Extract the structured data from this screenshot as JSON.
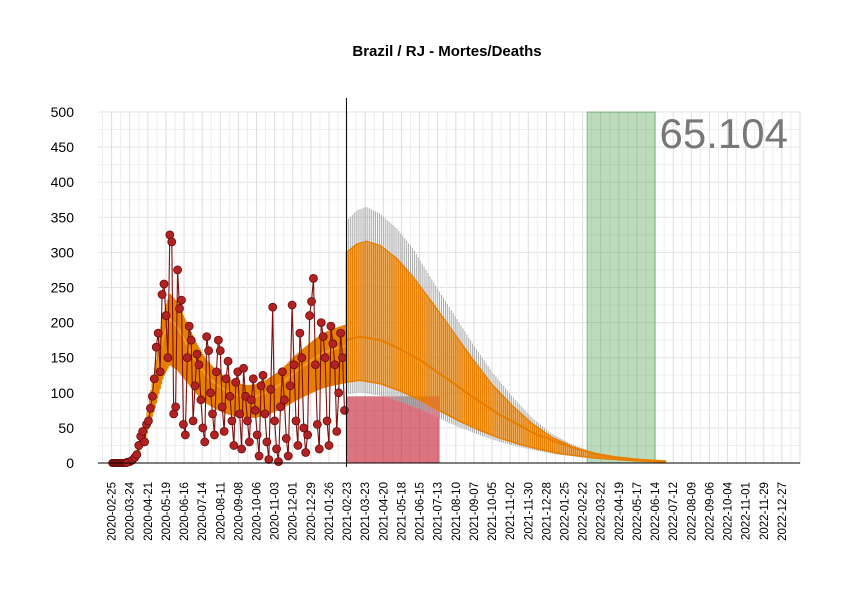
{
  "chart_data": {
    "type": "line",
    "title": "Brazil / RJ - Mortes/Deaths",
    "total_label": "65.104",
    "ylim": [
      0,
      500
    ],
    "y_ticks": [
      0,
      50,
      100,
      150,
      200,
      250,
      300,
      350,
      400,
      450,
      500
    ],
    "x_range": [
      "2020-02-04",
      "2023-01-24"
    ],
    "x_ticks": [
      "2020-02-25",
      "2020-03-24",
      "2020-04-21",
      "2020-05-19",
      "2020-06-16",
      "2020-07-14",
      "2020-08-11",
      "2020-09-08",
      "2020-10-06",
      "2020-11-03",
      "2020-12-01",
      "2020-12-29",
      "2021-01-26",
      "2021-02-23",
      "2021-03-23",
      "2021-04-20",
      "2021-05-18",
      "2021-06-15",
      "2021-07-13",
      "2021-08-10",
      "2021-09-07",
      "2021-10-05",
      "2021-11-02",
      "2021-11-30",
      "2021-12-28",
      "2022-01-25",
      "2022-02-22",
      "2022-03-22",
      "2022-04-19",
      "2022-05-17",
      "2022-06-14",
      "2022-07-12",
      "2022-08-09",
      "2022-09-06",
      "2022-10-04",
      "2022-11-01",
      "2022-11-29",
      "2022-12-27"
    ],
    "forecast_start": "2021-02-22",
    "green_band": [
      "2022-03-01",
      "2022-06-14"
    ],
    "red_band": {
      "start": "2021-02-22",
      "end": "2021-07-16",
      "level": 95
    },
    "colors": {
      "observed": "#b22222",
      "observed_line": "#7a1010",
      "fit": "#e67e00",
      "band_red": "#c8283c",
      "band_green": "#2e8b2e",
      "forecast_gray": "#aaaaaa",
      "total": "#777777"
    },
    "series": [
      {
        "kind": "observed_daily",
        "points": [
          [
            "2020-03-20",
            1
          ],
          [
            "2020-03-24",
            2
          ],
          [
            "2020-03-28",
            4
          ],
          [
            "2020-04-01",
            8
          ],
          [
            "2020-04-04",
            12
          ],
          [
            "2020-04-07",
            25
          ],
          [
            "2020-04-10",
            38
          ],
          [
            "2020-04-13",
            45
          ],
          [
            "2020-04-16",
            30
          ],
          [
            "2020-04-19",
            55
          ],
          [
            "2020-04-22",
            60
          ],
          [
            "2020-04-25",
            78
          ],
          [
            "2020-04-28",
            95
          ],
          [
            "2020-05-01",
            120
          ],
          [
            "2020-05-04",
            165
          ],
          [
            "2020-05-07",
            185
          ],
          [
            "2020-05-10",
            130
          ],
          [
            "2020-05-13",
            240
          ],
          [
            "2020-05-16",
            255
          ],
          [
            "2020-05-19",
            210
          ],
          [
            "2020-05-22",
            150
          ],
          [
            "2020-05-25",
            325
          ],
          [
            "2020-05-28",
            315
          ],
          [
            "2020-05-31",
            70
          ],
          [
            "2020-06-03",
            80
          ],
          [
            "2020-06-06",
            275
          ],
          [
            "2020-06-09",
            220
          ],
          [
            "2020-06-12",
            232
          ],
          [
            "2020-06-15",
            55
          ],
          [
            "2020-06-18",
            40
          ],
          [
            "2020-06-21",
            150
          ],
          [
            "2020-06-24",
            195
          ],
          [
            "2020-06-27",
            175
          ],
          [
            "2020-06-30",
            60
          ],
          [
            "2020-07-03",
            110
          ],
          [
            "2020-07-06",
            155
          ],
          [
            "2020-07-09",
            140
          ],
          [
            "2020-07-12",
            90
          ],
          [
            "2020-07-15",
            50
          ],
          [
            "2020-07-18",
            30
          ],
          [
            "2020-07-21",
            180
          ],
          [
            "2020-07-24",
            160
          ],
          [
            "2020-07-27",
            100
          ],
          [
            "2020-07-30",
            70
          ],
          [
            "2020-08-02",
            40
          ],
          [
            "2020-08-05",
            130
          ],
          [
            "2020-08-08",
            175
          ],
          [
            "2020-08-11",
            160
          ],
          [
            "2020-08-14",
            80
          ],
          [
            "2020-08-17",
            45
          ],
          [
            "2020-08-20",
            120
          ],
          [
            "2020-08-23",
            145
          ],
          [
            "2020-08-26",
            95
          ],
          [
            "2020-08-29",
            60
          ],
          [
            "2020-09-01",
            25
          ],
          [
            "2020-09-04",
            115
          ],
          [
            "2020-09-07",
            130
          ],
          [
            "2020-09-10",
            70
          ],
          [
            "2020-09-13",
            20
          ],
          [
            "2020-09-16",
            135
          ],
          [
            "2020-09-19",
            95
          ],
          [
            "2020-09-22",
            60
          ],
          [
            "2020-09-25",
            30
          ],
          [
            "2020-09-28",
            90
          ],
          [
            "2020-10-01",
            120
          ],
          [
            "2020-10-04",
            75
          ],
          [
            "2020-10-07",
            40
          ],
          [
            "2020-10-10",
            10
          ],
          [
            "2020-10-13",
            110
          ],
          [
            "2020-10-16",
            125
          ],
          [
            "2020-10-19",
            70
          ],
          [
            "2020-10-22",
            30
          ],
          [
            "2020-10-25",
            5
          ],
          [
            "2020-10-28",
            105
          ],
          [
            "2020-10-31",
            222
          ],
          [
            "2020-11-03",
            60
          ],
          [
            "2020-11-06",
            20
          ],
          [
            "2020-11-09",
            2
          ],
          [
            "2020-11-12",
            80
          ],
          [
            "2020-11-15",
            130
          ],
          [
            "2020-11-18",
            90
          ],
          [
            "2020-11-21",
            35
          ],
          [
            "2020-11-24",
            10
          ],
          [
            "2020-11-27",
            110
          ],
          [
            "2020-11-30",
            225
          ],
          [
            "2020-12-03",
            140
          ],
          [
            "2020-12-06",
            60
          ],
          [
            "2020-12-09",
            25
          ],
          [
            "2020-12-12",
            185
          ],
          [
            "2020-12-15",
            150
          ],
          [
            "2020-12-18",
            50
          ],
          [
            "2020-12-21",
            15
          ],
          [
            "2020-12-24",
            40
          ],
          [
            "2020-12-27",
            210
          ],
          [
            "2020-12-30",
            230
          ],
          [
            "2021-01-02",
            263
          ],
          [
            "2021-01-05",
            140
          ],
          [
            "2021-01-08",
            55
          ],
          [
            "2021-01-11",
            20
          ],
          [
            "2021-01-14",
            200
          ],
          [
            "2021-01-17",
            180
          ],
          [
            "2021-01-20",
            150
          ],
          [
            "2021-01-23",
            60
          ],
          [
            "2021-01-26",
            25
          ],
          [
            "2021-01-29",
            195
          ],
          [
            "2021-02-01",
            170
          ],
          [
            "2021-02-04",
            140
          ],
          [
            "2021-02-07",
            45
          ],
          [
            "2021-02-10",
            100
          ],
          [
            "2021-02-13",
            185
          ],
          [
            "2021-02-16",
            150
          ],
          [
            "2021-02-19",
            75
          ]
        ]
      },
      {
        "kind": "fit_curve",
        "points": [
          [
            "2020-03-15",
            0
          ],
          [
            "2020-04-01",
            5
          ],
          [
            "2020-04-15",
            40
          ],
          [
            "2020-05-01",
            110
          ],
          [
            "2020-05-15",
            180
          ],
          [
            "2020-05-25",
            205
          ],
          [
            "2020-06-05",
            195
          ],
          [
            "2020-06-20",
            170
          ],
          [
            "2020-07-05",
            145
          ],
          [
            "2020-07-20",
            125
          ],
          [
            "2020-08-05",
            112
          ],
          [
            "2020-08-20",
            103
          ],
          [
            "2020-09-05",
            97
          ],
          [
            "2020-09-20",
            94
          ],
          [
            "2020-10-05",
            95
          ],
          [
            "2020-10-20",
            100
          ],
          [
            "2020-11-05",
            108
          ],
          [
            "2020-11-20",
            118
          ],
          [
            "2020-12-05",
            130
          ],
          [
            "2020-12-20",
            140
          ],
          [
            "2021-01-05",
            150
          ],
          [
            "2021-01-20",
            158
          ],
          [
            "2021-02-05",
            163
          ],
          [
            "2021-02-20",
            167
          ]
        ]
      },
      {
        "kind": "forecast_upper",
        "points": [
          [
            "2021-02-22",
            345
          ],
          [
            "2021-03-10",
            360
          ],
          [
            "2021-03-25",
            365
          ],
          [
            "2021-04-15",
            355
          ],
          [
            "2021-05-10",
            335
          ],
          [
            "2021-06-05",
            305
          ],
          [
            "2021-07-05",
            260
          ],
          [
            "2021-08-05",
            215
          ],
          [
            "2021-09-05",
            170
          ],
          [
            "2021-10-05",
            130
          ],
          [
            "2021-11-05",
            95
          ],
          [
            "2021-12-05",
            65
          ],
          [
            "2022-01-05",
            42
          ],
          [
            "2022-02-05",
            27
          ],
          [
            "2022-03-05",
            17
          ],
          [
            "2022-04-05",
            10
          ],
          [
            "2022-05-05",
            6
          ],
          [
            "2022-06-05",
            4
          ],
          [
            "2022-07-01",
            3
          ]
        ]
      },
      {
        "kind": "forecast_fit_upper",
        "points": [
          [
            "2021-02-22",
            300
          ],
          [
            "2021-03-10",
            312
          ],
          [
            "2021-03-25",
            316
          ],
          [
            "2021-04-15",
            310
          ],
          [
            "2021-05-10",
            292
          ],
          [
            "2021-06-05",
            265
          ],
          [
            "2021-07-05",
            228
          ],
          [
            "2021-08-05",
            188
          ],
          [
            "2021-09-05",
            148
          ],
          [
            "2021-10-05",
            112
          ],
          [
            "2021-11-05",
            82
          ],
          [
            "2021-12-05",
            57
          ],
          [
            "2022-01-05",
            37
          ],
          [
            "2022-02-05",
            24
          ],
          [
            "2022-03-05",
            15
          ],
          [
            "2022-04-05",
            9
          ],
          [
            "2022-05-05",
            6
          ],
          [
            "2022-06-05",
            4
          ],
          [
            "2022-07-01",
            3
          ]
        ]
      },
      {
        "kind": "forecast_mid",
        "points": [
          [
            "2021-02-22",
            175
          ],
          [
            "2021-03-15",
            180
          ],
          [
            "2021-04-15",
            175
          ],
          [
            "2021-05-15",
            163
          ],
          [
            "2021-06-15",
            147
          ],
          [
            "2021-07-15",
            128
          ],
          [
            "2021-08-15",
            108
          ],
          [
            "2021-09-15",
            88
          ],
          [
            "2021-10-15",
            70
          ],
          [
            "2021-11-15",
            54
          ],
          [
            "2021-12-15",
            40
          ],
          [
            "2022-01-15",
            29
          ],
          [
            "2022-02-15",
            20
          ],
          [
            "2022-03-15",
            13
          ],
          [
            "2022-04-15",
            8
          ],
          [
            "2022-05-15",
            5
          ],
          [
            "2022-06-15",
            3
          ],
          [
            "2022-07-01",
            2
          ]
        ]
      },
      {
        "kind": "forecast_lower",
        "points": [
          [
            "2021-02-22",
            115
          ],
          [
            "2021-03-15",
            118
          ],
          [
            "2021-04-15",
            113
          ],
          [
            "2021-05-15",
            103
          ],
          [
            "2021-06-15",
            90
          ],
          [
            "2021-07-15",
            75
          ],
          [
            "2021-08-15",
            60
          ],
          [
            "2021-09-15",
            47
          ],
          [
            "2021-10-15",
            36
          ],
          [
            "2021-11-15",
            27
          ],
          [
            "2021-12-15",
            20
          ],
          [
            "2022-01-15",
            14
          ],
          [
            "2022-02-15",
            10
          ],
          [
            "2022-03-15",
            7
          ],
          [
            "2022-04-15",
            5
          ],
          [
            "2022-05-15",
            3
          ],
          [
            "2022-06-15",
            2
          ],
          [
            "2022-07-01",
            1
          ]
        ]
      }
    ]
  }
}
